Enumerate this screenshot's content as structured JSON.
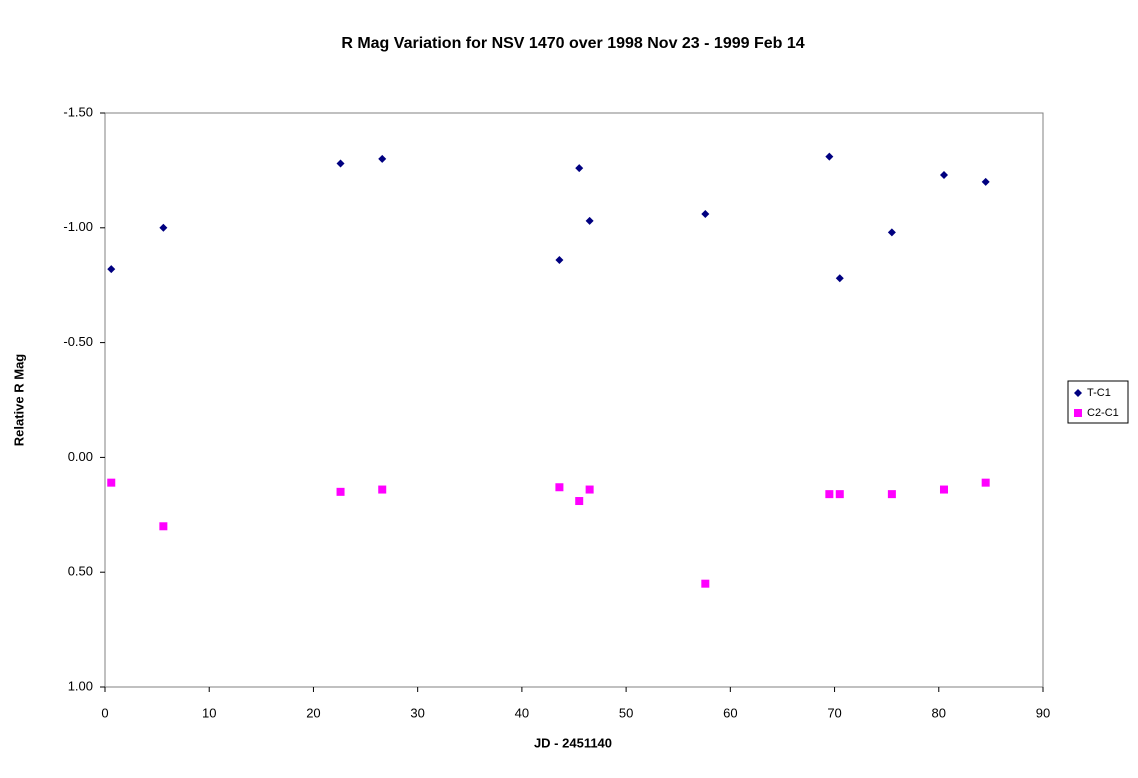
{
  "chart_data": {
    "type": "scatter",
    "title": "R Mag Variation for NSV 1470 over 1998 Nov 23 - 1999 Feb 14",
    "x_label": "JD - 2451140",
    "y_label": "Relative R Mag",
    "xlim": [
      0,
      90
    ],
    "xticks": [
      0,
      10,
      20,
      30,
      40,
      50,
      60,
      70,
      80,
      90
    ],
    "ylim": [
      -1.5,
      1
    ],
    "y_inverted": true,
    "yticks": [
      {
        "value": -1.5,
        "label": "-1.50"
      },
      {
        "value": -1,
        "label": "-1.00"
      },
      {
        "value": -0.5,
        "label": "-0.50"
      },
      {
        "value": 0,
        "label": "0.00"
      },
      {
        "value": 0.5,
        "label": "0.50"
      },
      {
        "value": 1,
        "label": "1.00"
      }
    ],
    "grid": false,
    "legend": "right",
    "series": [
      {
        "name": "T-C1",
        "color": "#000080",
        "marker": "diamond",
        "x": [
          0.6,
          5.6,
          22.6,
          26.6,
          43.6,
          45.5,
          46.5,
          57.6,
          69.5,
          70.5,
          75.5,
          80.5,
          84.5
        ],
        "values": [
          -0.82,
          -1.0,
          -1.28,
          -1.3,
          -0.86,
          -1.26,
          -1.03,
          -1.06,
          -1.31,
          -0.78,
          -0.98,
          -1.23,
          -1.2
        ]
      },
      {
        "name": "C2-C1",
        "color": "#ff00ff",
        "marker": "square",
        "x": [
          0.6,
          5.6,
          22.6,
          26.6,
          43.6,
          45.5,
          46.5,
          57.6,
          69.5,
          70.5,
          75.5,
          80.5,
          84.5
        ],
        "values": [
          0.11,
          0.3,
          0.15,
          0.14,
          0.13,
          0.19,
          0.14,
          0.55,
          0.16,
          0.16,
          0.16,
          0.14,
          0.11
        ]
      }
    ]
  }
}
